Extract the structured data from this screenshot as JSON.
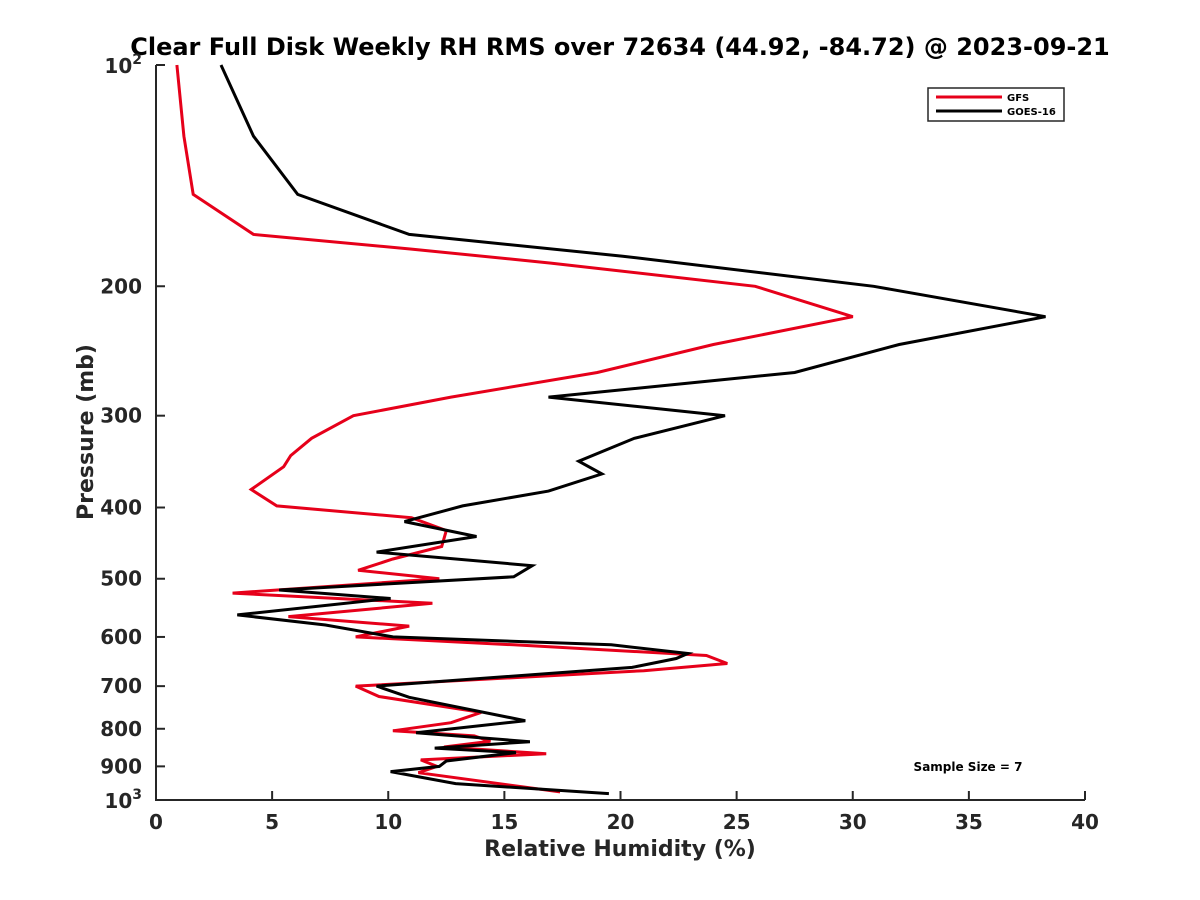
{
  "chart_data": {
    "type": "line",
    "title": "Clear Full Disk Weekly RH RMS over 72634 (44.92, -84.72) @ 2023-09-21",
    "xlabel": "Relative Humidity (%)",
    "ylabel": "Pressure (mb)",
    "xlim": [
      0,
      40
    ],
    "ylim": [
      100,
      1000
    ],
    "yscale": "log",
    "y_reversed": true,
    "x_ticks": [
      0,
      5,
      10,
      15,
      20,
      25,
      30,
      35,
      40
    ],
    "y_ticks": [
      {
        "value": 100,
        "base": "10",
        "exp": "2"
      },
      {
        "value": 200,
        "label": "200"
      },
      {
        "value": 300,
        "label": "300"
      },
      {
        "value": 400,
        "label": "400"
      },
      {
        "value": 500,
        "label": "500"
      },
      {
        "value": 600,
        "label": "600"
      },
      {
        "value": 700,
        "label": "700"
      },
      {
        "value": 800,
        "label": "800"
      },
      {
        "value": 900,
        "label": "900"
      },
      {
        "value": 1000,
        "base": "10",
        "exp": "3"
      }
    ],
    "legend_position": "top-right",
    "annotation": "Sample Size = 7",
    "series": [
      {
        "name": "GFS",
        "color": "#e6001a",
        "points": [
          [
            0.9,
            100
          ],
          [
            1.2,
            125
          ],
          [
            1.6,
            150
          ],
          [
            4.2,
            170
          ],
          [
            11,
            178
          ],
          [
            17,
            186
          ],
          [
            25.8,
            200
          ],
          [
            30,
            220
          ],
          [
            24,
            240
          ],
          [
            19,
            262
          ],
          [
            12.7,
            283
          ],
          [
            8.5,
            300
          ],
          [
            6.7,
            322
          ],
          [
            5.8,
            340
          ],
          [
            5.5,
            352
          ],
          [
            4.1,
            378
          ],
          [
            5.2,
            398
          ],
          [
            11.0,
            413
          ],
          [
            12.5,
            430
          ],
          [
            12.3,
            452
          ],
          [
            10.2,
            470
          ],
          [
            8.7,
            487
          ],
          [
            12.2,
            500
          ],
          [
            3.3,
            523
          ],
          [
            11.9,
            540
          ],
          [
            5.7,
            563
          ],
          [
            10.9,
            580
          ],
          [
            8.6,
            600
          ],
          [
            15.4,
            615
          ],
          [
            23.7,
            636
          ],
          [
            24.6,
            652
          ],
          [
            21.0,
            667
          ],
          [
            8.6,
            700
          ],
          [
            9.6,
            723
          ],
          [
            14.0,
            760
          ],
          [
            12.7,
            785
          ],
          [
            10.2,
            805
          ],
          [
            13.7,
            818
          ],
          [
            14.4,
            832
          ],
          [
            12.4,
            847
          ],
          [
            16.8,
            865
          ],
          [
            11.4,
            882
          ],
          [
            12.1,
            900
          ],
          [
            11.3,
            918
          ],
          [
            17.4,
            975
          ]
        ]
      },
      {
        "name": "GOES-16",
        "color": "#000000",
        "points": [
          [
            2.8,
            100
          ],
          [
            4.2,
            125
          ],
          [
            6.1,
            150
          ],
          [
            10.9,
            170
          ],
          [
            20.1,
            182
          ],
          [
            30.9,
            200
          ],
          [
            38.3,
            220
          ],
          [
            32.0,
            240
          ],
          [
            27.5,
            262
          ],
          [
            16.9,
            283
          ],
          [
            24.5,
            300
          ],
          [
            20.6,
            322
          ],
          [
            18.2,
            346
          ],
          [
            19.2,
            360
          ],
          [
            16.9,
            380
          ],
          [
            13.2,
            398
          ],
          [
            10.7,
            418
          ],
          [
            13.8,
            438
          ],
          [
            9.5,
            460
          ],
          [
            16.2,
            480
          ],
          [
            15.4,
            497
          ],
          [
            5.3,
            518
          ],
          [
            10.1,
            532
          ],
          [
            3.5,
            560
          ],
          [
            7.3,
            578
          ],
          [
            10.2,
            600
          ],
          [
            19.6,
            615
          ],
          [
            22.9,
            632
          ],
          [
            22.4,
            642
          ],
          [
            20.5,
            660
          ],
          [
            9.5,
            700
          ],
          [
            10.9,
            725
          ],
          [
            15.9,
            780
          ],
          [
            11.2,
            810
          ],
          [
            16.1,
            833
          ],
          [
            12.0,
            850
          ],
          [
            15.5,
            862
          ],
          [
            12.5,
            885
          ],
          [
            12.2,
            900
          ],
          [
            10.1,
            915
          ],
          [
            12.9,
            950
          ],
          [
            19.5,
            980
          ]
        ]
      }
    ]
  }
}
